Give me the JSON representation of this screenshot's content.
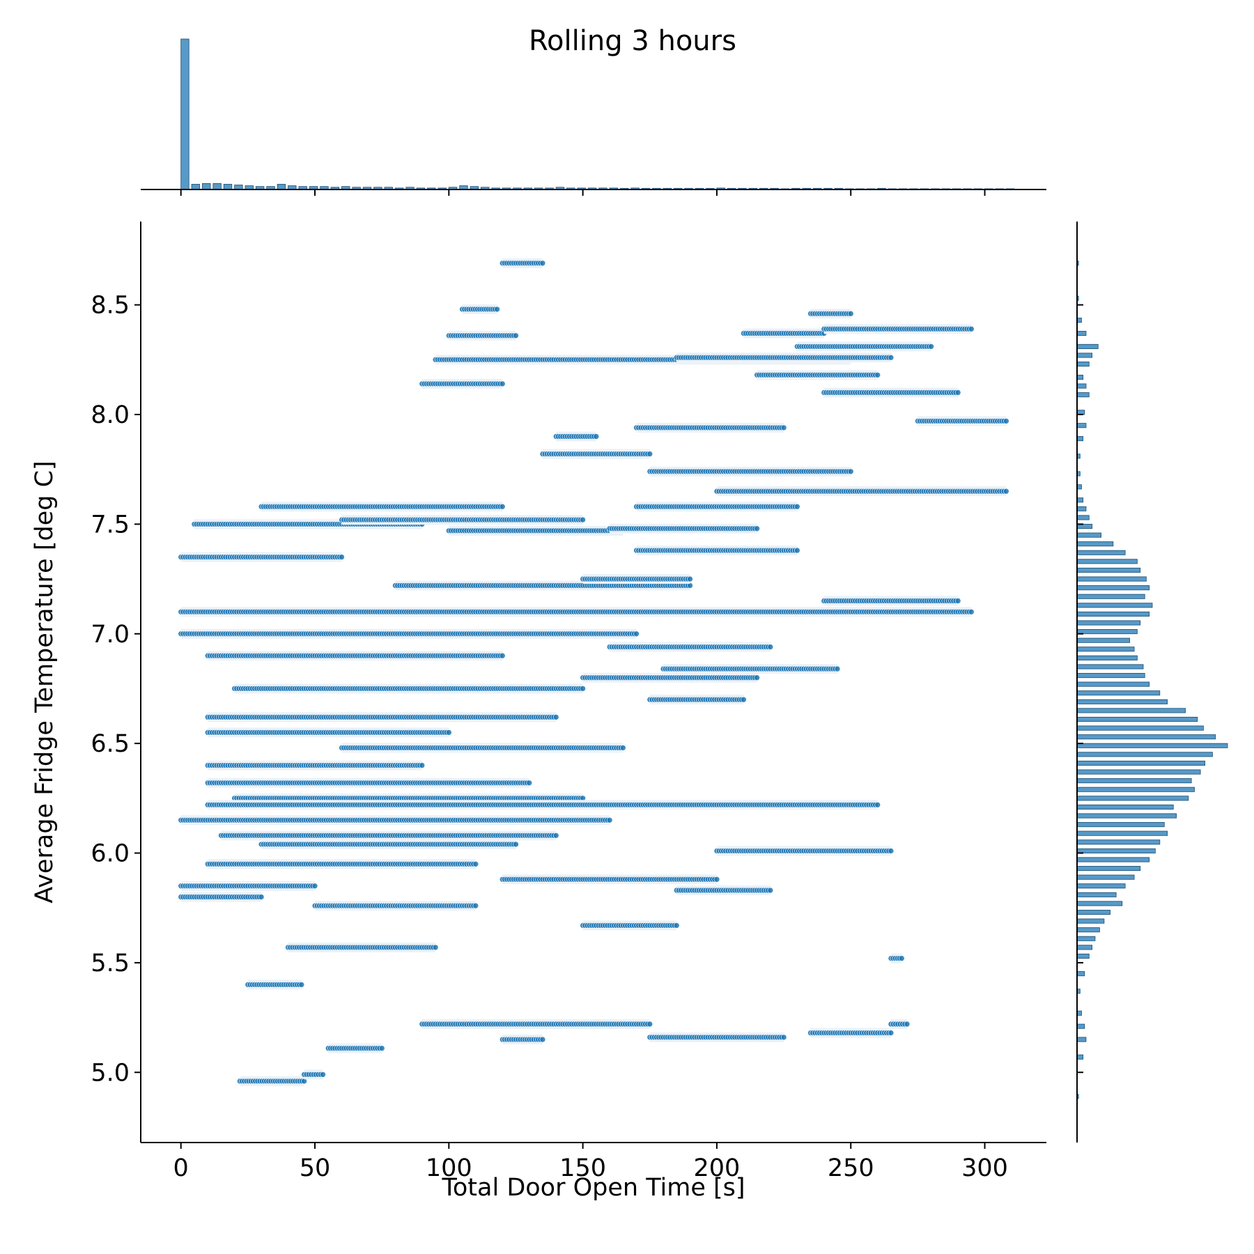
{
  "chart_data": {
    "type": "scatter",
    "title": "Rolling 3 hours",
    "xlabel": "Total Door Open Time [s]",
    "ylabel": "Average Fridge Temperature [deg C]",
    "xlim": [
      -15,
      323
    ],
    "ylim": [
      4.68,
      8.88
    ],
    "xticks": [
      0,
      50,
      100,
      150,
      200,
      250,
      300
    ],
    "yticks": [
      5.0,
      5.5,
      6.0,
      6.5,
      7.0,
      7.5,
      8.0,
      8.5
    ],
    "xtick_labels": [
      "0",
      "50",
      "100",
      "150",
      "200",
      "250",
      "300"
    ],
    "ytick_labels": [
      "5.0",
      "5.5",
      "6.0",
      "6.5",
      "7.0",
      "7.5",
      "8.0",
      "8.5"
    ],
    "grid": false,
    "legend": "none",
    "marginals": {
      "top": "histogram",
      "right": "histogram"
    },
    "color": "#1f77b4",
    "segments": [
      {
        "x": [
          120,
          135
        ],
        "y": 8.69
      },
      {
        "x": [
          105,
          118
        ],
        "y": 8.48
      },
      {
        "x": [
          100,
          125
        ],
        "y": 8.36
      },
      {
        "x": [
          95,
          250
        ],
        "y": 8.25
      },
      {
        "x": [
          90,
          120
        ],
        "y": 8.14
      },
      {
        "x": [
          235,
          250
        ],
        "y": 8.46
      },
      {
        "x": [
          210,
          240
        ],
        "y": 8.37
      },
      {
        "x": [
          240,
          295
        ],
        "y": 8.39
      },
      {
        "x": [
          230,
          280
        ],
        "y": 8.31
      },
      {
        "x": [
          185,
          265
        ],
        "y": 8.26
      },
      {
        "x": [
          215,
          260
        ],
        "y": 8.18
      },
      {
        "x": [
          240,
          290
        ],
        "y": 8.1
      },
      {
        "x": [
          275,
          308
        ],
        "y": 7.97
      },
      {
        "x": [
          170,
          225
        ],
        "y": 7.94
      },
      {
        "x": [
          135,
          175
        ],
        "y": 7.82
      },
      {
        "x": [
          175,
          250
        ],
        "y": 7.74
      },
      {
        "x": [
          140,
          155
        ],
        "y": 7.9
      },
      {
        "x": [
          0,
          60
        ],
        "y": 7.35
      },
      {
        "x": [
          5,
          90
        ],
        "y": 7.5
      },
      {
        "x": [
          30,
          120
        ],
        "y": 7.58
      },
      {
        "x": [
          60,
          150
        ],
        "y": 7.52
      },
      {
        "x": [
          100,
          165
        ],
        "y": 7.47
      },
      {
        "x": [
          160,
          215
        ],
        "y": 7.48
      },
      {
        "x": [
          170,
          230
        ],
        "y": 7.58
      },
      {
        "x": [
          200,
          308
        ],
        "y": 7.65
      },
      {
        "x": [
          170,
          230
        ],
        "y": 7.38
      },
      {
        "x": [
          80,
          190
        ],
        "y": 7.22
      },
      {
        "x": [
          150,
          190
        ],
        "y": 7.25
      },
      {
        "x": [
          0,
          130
        ],
        "y": 7.1
      },
      {
        "x": [
          120,
          295
        ],
        "y": 7.1
      },
      {
        "x": [
          240,
          290
        ],
        "y": 7.15
      },
      {
        "x": [
          0,
          170
        ],
        "y": 7.0
      },
      {
        "x": [
          10,
          120
        ],
        "y": 6.9
      },
      {
        "x": [
          160,
          220
        ],
        "y": 6.94
      },
      {
        "x": [
          180,
          245
        ],
        "y": 6.84
      },
      {
        "x": [
          150,
          215
        ],
        "y": 6.8
      },
      {
        "x": [
          20,
          150
        ],
        "y": 6.75
      },
      {
        "x": [
          175,
          210
        ],
        "y": 6.7
      },
      {
        "x": [
          10,
          140
        ],
        "y": 6.62
      },
      {
        "x": [
          10,
          100
        ],
        "y": 6.55
      },
      {
        "x": [
          60,
          165
        ],
        "y": 6.48
      },
      {
        "x": [
          10,
          90
        ],
        "y": 6.4
      },
      {
        "x": [
          10,
          130
        ],
        "y": 6.32
      },
      {
        "x": [
          20,
          150
        ],
        "y": 6.25
      },
      {
        "x": [
          10,
          260
        ],
        "y": 6.22
      },
      {
        "x": [
          0,
          160
        ],
        "y": 6.15
      },
      {
        "x": [
          15,
          140
        ],
        "y": 6.08
      },
      {
        "x": [
          30,
          125
        ],
        "y": 6.04
      },
      {
        "x": [
          200,
          265
        ],
        "y": 6.01
      },
      {
        "x": [
          10,
          110
        ],
        "y": 5.95
      },
      {
        "x": [
          120,
          200
        ],
        "y": 5.88
      },
      {
        "x": [
          185,
          220
        ],
        "y": 5.83
      },
      {
        "x": [
          0,
          50
        ],
        "y": 5.85
      },
      {
        "x": [
          50,
          110
        ],
        "y": 5.76
      },
      {
        "x": [
          150,
          185
        ],
        "y": 5.67
      },
      {
        "x": [
          40,
          95
        ],
        "y": 5.57
      },
      {
        "x": [
          25,
          45
        ],
        "y": 5.4
      },
      {
        "x": [
          0,
          30
        ],
        "y": 5.8
      },
      {
        "x": [
          90,
          175
        ],
        "y": 5.22
      },
      {
        "x": [
          175,
          225
        ],
        "y": 5.16
      },
      {
        "x": [
          235,
          265
        ],
        "y": 5.18
      },
      {
        "x": [
          265,
          271
        ],
        "y": 5.22
      },
      {
        "x": [
          120,
          135
        ],
        "y": 5.15
      },
      {
        "x": [
          55,
          75
        ],
        "y": 5.11
      },
      {
        "x": [
          22,
          46
        ],
        "y": 4.96
      },
      {
        "x": [
          46,
          53
        ],
        "y": 4.99
      },
      {
        "x": [
          265,
          269
        ],
        "y": 5.52
      }
    ],
    "x_histogram": {
      "bin_starts": [
        0,
        4,
        8,
        12,
        16,
        20,
        24,
        28,
        32,
        36,
        40,
        44,
        48,
        52,
        56,
        60,
        64,
        68,
        72,
        76,
        80,
        84,
        88,
        92,
        96,
        100,
        104,
        108,
        112,
        116,
        120,
        124,
        128,
        132,
        136,
        140,
        144,
        148,
        152,
        156,
        160,
        164,
        168,
        172,
        176,
        180,
        184,
        188,
        192,
        196,
        200,
        204,
        208,
        212,
        216,
        220,
        224,
        228,
        232,
        236,
        240,
        244,
        248,
        252,
        256,
        260,
        264,
        268,
        272,
        276,
        280,
        284,
        288,
        292,
        296,
        300,
        304,
        308
      ],
      "counts": [
        100,
        3.5,
        4,
        4,
        3.5,
        3,
        2.5,
        2,
        2,
        3.5,
        2.5,
        2,
        2,
        2,
        1.5,
        2,
        1.5,
        1.5,
        1.5,
        1.5,
        1,
        1.5,
        1,
        1,
        1,
        1.5,
        2.5,
        2,
        1.5,
        1,
        1,
        1,
        1,
        1,
        1,
        1.5,
        1,
        1,
        1,
        1,
        1,
        0.8,
        1,
        0.8,
        0.8,
        0.8,
        0.8,
        0.8,
        0.8,
        0.8,
        1,
        0.8,
        0.8,
        0.8,
        0.8,
        0.8,
        0.5,
        0.8,
        0.8,
        0.8,
        0.8,
        0.8,
        0.5,
        0.5,
        0.5,
        0.8,
        0.5,
        0.5,
        0.5,
        0.5,
        0.5,
        0.5,
        0.5,
        0.5,
        0.5,
        0.5,
        0.5,
        0.5
      ]
    },
    "y_histogram": {
      "bin_width": 0.02,
      "bins": [
        {
          "y": 4.88,
          "count": 1
        },
        {
          "y": 5.06,
          "count": 4
        },
        {
          "y": 5.14,
          "count": 6
        },
        {
          "y": 5.2,
          "count": 5
        },
        {
          "y": 5.26,
          "count": 3
        },
        {
          "y": 5.36,
          "count": 2
        },
        {
          "y": 5.44,
          "count": 5
        },
        {
          "y": 5.52,
          "count": 8
        },
        {
          "y": 5.56,
          "count": 10
        },
        {
          "y": 5.6,
          "count": 12
        },
        {
          "y": 5.64,
          "count": 15
        },
        {
          "y": 5.68,
          "count": 18
        },
        {
          "y": 5.72,
          "count": 22
        },
        {
          "y": 5.76,
          "count": 30
        },
        {
          "y": 5.8,
          "count": 26
        },
        {
          "y": 5.84,
          "count": 32
        },
        {
          "y": 5.88,
          "count": 38
        },
        {
          "y": 5.92,
          "count": 42
        },
        {
          "y": 5.96,
          "count": 48
        },
        {
          "y": 6.0,
          "count": 52
        },
        {
          "y": 6.04,
          "count": 55
        },
        {
          "y": 6.08,
          "count": 60
        },
        {
          "y": 6.12,
          "count": 58
        },
        {
          "y": 6.16,
          "count": 66
        },
        {
          "y": 6.2,
          "count": 64
        },
        {
          "y": 6.24,
          "count": 74
        },
        {
          "y": 6.28,
          "count": 78
        },
        {
          "y": 6.32,
          "count": 76
        },
        {
          "y": 6.36,
          "count": 82
        },
        {
          "y": 6.4,
          "count": 85
        },
        {
          "y": 6.44,
          "count": 90
        },
        {
          "y": 6.48,
          "count": 100
        },
        {
          "y": 6.52,
          "count": 92
        },
        {
          "y": 6.56,
          "count": 84
        },
        {
          "y": 6.6,
          "count": 80
        },
        {
          "y": 6.64,
          "count": 72
        },
        {
          "y": 6.68,
          "count": 60
        },
        {
          "y": 6.72,
          "count": 55
        },
        {
          "y": 6.76,
          "count": 48
        },
        {
          "y": 6.8,
          "count": 45
        },
        {
          "y": 6.84,
          "count": 44
        },
        {
          "y": 6.88,
          "count": 40
        },
        {
          "y": 6.92,
          "count": 38
        },
        {
          "y": 6.96,
          "count": 35
        },
        {
          "y": 7.0,
          "count": 40
        },
        {
          "y": 7.04,
          "count": 42
        },
        {
          "y": 7.08,
          "count": 48
        },
        {
          "y": 7.12,
          "count": 50
        },
        {
          "y": 7.16,
          "count": 45
        },
        {
          "y": 7.2,
          "count": 48
        },
        {
          "y": 7.24,
          "count": 46
        },
        {
          "y": 7.28,
          "count": 42
        },
        {
          "y": 7.32,
          "count": 40
        },
        {
          "y": 7.36,
          "count": 32
        },
        {
          "y": 7.4,
          "count": 24
        },
        {
          "y": 7.44,
          "count": 16
        },
        {
          "y": 7.48,
          "count": 10
        },
        {
          "y": 7.52,
          "count": 8
        },
        {
          "y": 7.56,
          "count": 6
        },
        {
          "y": 7.6,
          "count": 4
        },
        {
          "y": 7.66,
          "count": 3
        },
        {
          "y": 7.72,
          "count": 2
        },
        {
          "y": 7.8,
          "count": 2
        },
        {
          "y": 7.88,
          "count": 4
        },
        {
          "y": 7.94,
          "count": 6
        },
        {
          "y": 8.0,
          "count": 5
        },
        {
          "y": 8.08,
          "count": 8
        },
        {
          "y": 8.12,
          "count": 6
        },
        {
          "y": 8.16,
          "count": 4
        },
        {
          "y": 8.22,
          "count": 8
        },
        {
          "y": 8.26,
          "count": 10
        },
        {
          "y": 8.3,
          "count": 14
        },
        {
          "y": 8.36,
          "count": 6
        },
        {
          "y": 8.42,
          "count": 3
        },
        {
          "y": 8.52,
          "count": 1
        },
        {
          "y": 8.68,
          "count": 1
        }
      ]
    }
  }
}
